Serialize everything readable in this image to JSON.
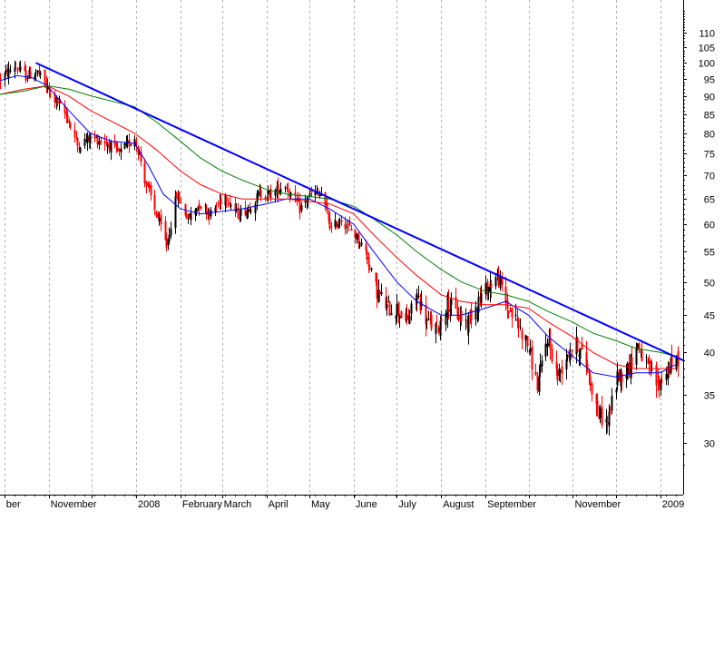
{
  "chart_data": {
    "type": "line",
    "title": "",
    "xlabel": "",
    "ylabel": "",
    "y_scale": "log",
    "ylim": [
      25.5,
      122
    ],
    "grid": "vertical dashed at month starts",
    "legend": "none",
    "y_ticks": [
      30,
      35,
      40,
      45,
      50,
      55,
      60,
      65,
      70,
      75,
      80,
      85,
      90,
      95,
      100,
      105,
      110
    ],
    "x_labels": [
      "ber",
      "November",
      "2008",
      "February",
      "March",
      "April",
      "May",
      "June",
      "July",
      "August",
      "September",
      "November",
      "2009"
    ],
    "x_label_dates": [
      "2007-10-01",
      "2007-11-01",
      "2008-01-01",
      "2008-02-01",
      "2008-03-01",
      "2008-04-01",
      "2008-05-01",
      "2008-06-01",
      "2008-07-01",
      "2008-08-01",
      "2008-09-01",
      "2008-11-01",
      "2009-01-01"
    ],
    "gridline_dates": [
      "2007-10-01",
      "2007-11-01",
      "2007-12-01",
      "2008-01-01",
      "2008-02-01",
      "2008-03-01",
      "2008-04-01",
      "2008-05-01",
      "2008-06-01",
      "2008-07-01",
      "2008-08-01",
      "2008-09-01",
      "2008-10-01",
      "2008-11-01",
      "2008-12-01",
      "2009-01-01"
    ],
    "x_range": [
      "2007-09-28",
      "2009-01-17"
    ],
    "candles": {
      "up_color": "#000000",
      "down_color": "#ff0000",
      "approx_close": [
        [
          "2007-09-28",
          95
        ],
        [
          "2007-10-08",
          99
        ],
        [
          "2007-10-16",
          96
        ],
        [
          "2007-10-24",
          97
        ],
        [
          "2007-10-31",
          92
        ],
        [
          "2007-11-07",
          88
        ],
        [
          "2007-11-14",
          84
        ],
        [
          "2007-11-21",
          77
        ],
        [
          "2007-11-30",
          79
        ],
        [
          "2007-12-10",
          78
        ],
        [
          "2007-12-20",
          75
        ],
        [
          "2007-12-31",
          79
        ],
        [
          "2008-01-08",
          68
        ],
        [
          "2008-01-15",
          62
        ],
        [
          "2008-01-22",
          56
        ],
        [
          "2008-01-29",
          66
        ],
        [
          "2008-02-06",
          61
        ],
        [
          "2008-02-14",
          64
        ],
        [
          "2008-02-22",
          62
        ],
        [
          "2008-03-03",
          66
        ],
        [
          "2008-03-11",
          62
        ],
        [
          "2008-03-19",
          63
        ],
        [
          "2008-03-27",
          66
        ],
        [
          "2008-04-04",
          66
        ],
        [
          "2008-04-14",
          68
        ],
        [
          "2008-04-24",
          63
        ],
        [
          "2008-05-02",
          66
        ],
        [
          "2008-05-09",
          66
        ],
        [
          "2008-05-16",
          59
        ],
        [
          "2008-05-23",
          61
        ],
        [
          "2008-06-02",
          58
        ],
        [
          "2008-06-09",
          55
        ],
        [
          "2008-06-16",
          49
        ],
        [
          "2008-06-24",
          46
        ],
        [
          "2008-07-01",
          46
        ],
        [
          "2008-07-08",
          44
        ],
        [
          "2008-07-15",
          48
        ],
        [
          "2008-07-22",
          44
        ],
        [
          "2008-07-29",
          43
        ],
        [
          "2008-08-05",
          47
        ],
        [
          "2008-08-12",
          45
        ],
        [
          "2008-08-19",
          44
        ],
        [
          "2008-08-26",
          47
        ],
        [
          "2008-09-02",
          49
        ],
        [
          "2008-09-09",
          51
        ],
        [
          "2008-09-16",
          46
        ],
        [
          "2008-09-23",
          44
        ],
        [
          "2008-09-30",
          41
        ],
        [
          "2008-10-07",
          36
        ],
        [
          "2008-10-14",
          42
        ],
        [
          "2008-10-21",
          37
        ],
        [
          "2008-10-28",
          40
        ],
        [
          "2008-11-04",
          41
        ],
        [
          "2008-11-11",
          38
        ],
        [
          "2008-11-18",
          33
        ],
        [
          "2008-11-25",
          32
        ],
        [
          "2008-12-02",
          37
        ],
        [
          "2008-12-09",
          38
        ],
        [
          "2008-12-16",
          41
        ],
        [
          "2008-12-23",
          38
        ],
        [
          "2008-12-30",
          36
        ],
        [
          "2009-01-06",
          38
        ],
        [
          "2009-01-13",
          39
        ]
      ]
    },
    "series": [
      {
        "color": "#0000ff",
        "points": [
          [
            "2007-09-28",
            94.5
          ],
          [
            "2007-10-10",
            96
          ],
          [
            "2007-10-20",
            95.5
          ],
          [
            "2007-10-31",
            93
          ],
          [
            "2007-11-15",
            86
          ],
          [
            "2007-11-30",
            80
          ],
          [
            "2007-12-15",
            78
          ],
          [
            "2007-12-31",
            77.5
          ],
          [
            "2008-01-10",
            72
          ],
          [
            "2008-01-20",
            66
          ],
          [
            "2008-02-01",
            63
          ],
          [
            "2008-02-15",
            62
          ],
          [
            "2008-03-01",
            62.5
          ],
          [
            "2008-03-15",
            63
          ],
          [
            "2008-04-01",
            64
          ],
          [
            "2008-04-15",
            65
          ],
          [
            "2008-05-01",
            65
          ],
          [
            "2008-05-15",
            63
          ],
          [
            "2008-06-01",
            60
          ],
          [
            "2008-06-15",
            55
          ],
          [
            "2008-07-01",
            50
          ],
          [
            "2008-07-15",
            47
          ],
          [
            "2008-08-01",
            45
          ],
          [
            "2008-08-15",
            45
          ],
          [
            "2008-09-01",
            46
          ],
          [
            "2008-09-15",
            47
          ],
          [
            "2008-10-01",
            45
          ],
          [
            "2008-10-15",
            42
          ],
          [
            "2008-11-01",
            39.5
          ],
          [
            "2008-11-15",
            37.5
          ],
          [
            "2008-12-01",
            37
          ],
          [
            "2008-12-15",
            37.5
          ],
          [
            "2009-01-01",
            37.5
          ],
          [
            "2009-01-12",
            38.5
          ]
        ]
      },
      {
        "color": "#ff0000",
        "points": [
          [
            "2007-09-28",
            90.5
          ],
          [
            "2007-10-15",
            92
          ],
          [
            "2007-10-31",
            93
          ],
          [
            "2007-11-15",
            90
          ],
          [
            "2007-11-30",
            86
          ],
          [
            "2007-12-31",
            80
          ],
          [
            "2008-01-15",
            76
          ],
          [
            "2008-02-01",
            71
          ],
          [
            "2008-02-15",
            68
          ],
          [
            "2008-03-01",
            66
          ],
          [
            "2008-03-15",
            65
          ],
          [
            "2008-04-01",
            65
          ],
          [
            "2008-04-15",
            65
          ],
          [
            "2008-05-01",
            64.5
          ],
          [
            "2008-05-15",
            64
          ],
          [
            "2008-06-01",
            62
          ],
          [
            "2008-06-15",
            58
          ],
          [
            "2008-07-01",
            54
          ],
          [
            "2008-07-15",
            51
          ],
          [
            "2008-08-01",
            48
          ],
          [
            "2008-08-15",
            47
          ],
          [
            "2008-09-01",
            46.5
          ],
          [
            "2008-09-15",
            46.5
          ],
          [
            "2008-10-01",
            46
          ],
          [
            "2008-10-15",
            44
          ],
          [
            "2008-11-01",
            42
          ],
          [
            "2008-11-15",
            40
          ],
          [
            "2008-12-01",
            38.5
          ],
          [
            "2008-12-15",
            38
          ],
          [
            "2009-01-01",
            38
          ],
          [
            "2009-01-12",
            38
          ]
        ]
      },
      {
        "color": "#008000",
        "points": [
          [
            "2007-09-28",
            90.5
          ],
          [
            "2007-10-15",
            91.5
          ],
          [
            "2007-10-31",
            93
          ],
          [
            "2007-11-15",
            92
          ],
          [
            "2007-12-01",
            90
          ],
          [
            "2007-12-31",
            87
          ],
          [
            "2008-01-15",
            83
          ],
          [
            "2008-02-01",
            78
          ],
          [
            "2008-02-15",
            74
          ],
          [
            "2008-03-01",
            71
          ],
          [
            "2008-03-15",
            69
          ],
          [
            "2008-04-01",
            67
          ],
          [
            "2008-04-15",
            66
          ],
          [
            "2008-05-01",
            65.5
          ],
          [
            "2008-05-15",
            65
          ],
          [
            "2008-06-01",
            63.5
          ],
          [
            "2008-06-15",
            61
          ],
          [
            "2008-07-01",
            58
          ],
          [
            "2008-07-15",
            55
          ],
          [
            "2008-08-01",
            52
          ],
          [
            "2008-08-15",
            50
          ],
          [
            "2008-09-01",
            48.5
          ],
          [
            "2008-09-15",
            48
          ],
          [
            "2008-10-01",
            47
          ],
          [
            "2008-10-15",
            45.5
          ],
          [
            "2008-11-01",
            44
          ],
          [
            "2008-11-15",
            42.5
          ],
          [
            "2008-12-01",
            41.5
          ],
          [
            "2008-12-15",
            40.5
          ],
          [
            "2009-01-01",
            40
          ],
          [
            "2009-01-12",
            39.5
          ]
        ]
      }
    ],
    "trendline": {
      "color": "#0000ff",
      "start": [
        "2007-10-23",
        100
      ],
      "end": [
        "2009-01-17",
        39
      ]
    }
  }
}
